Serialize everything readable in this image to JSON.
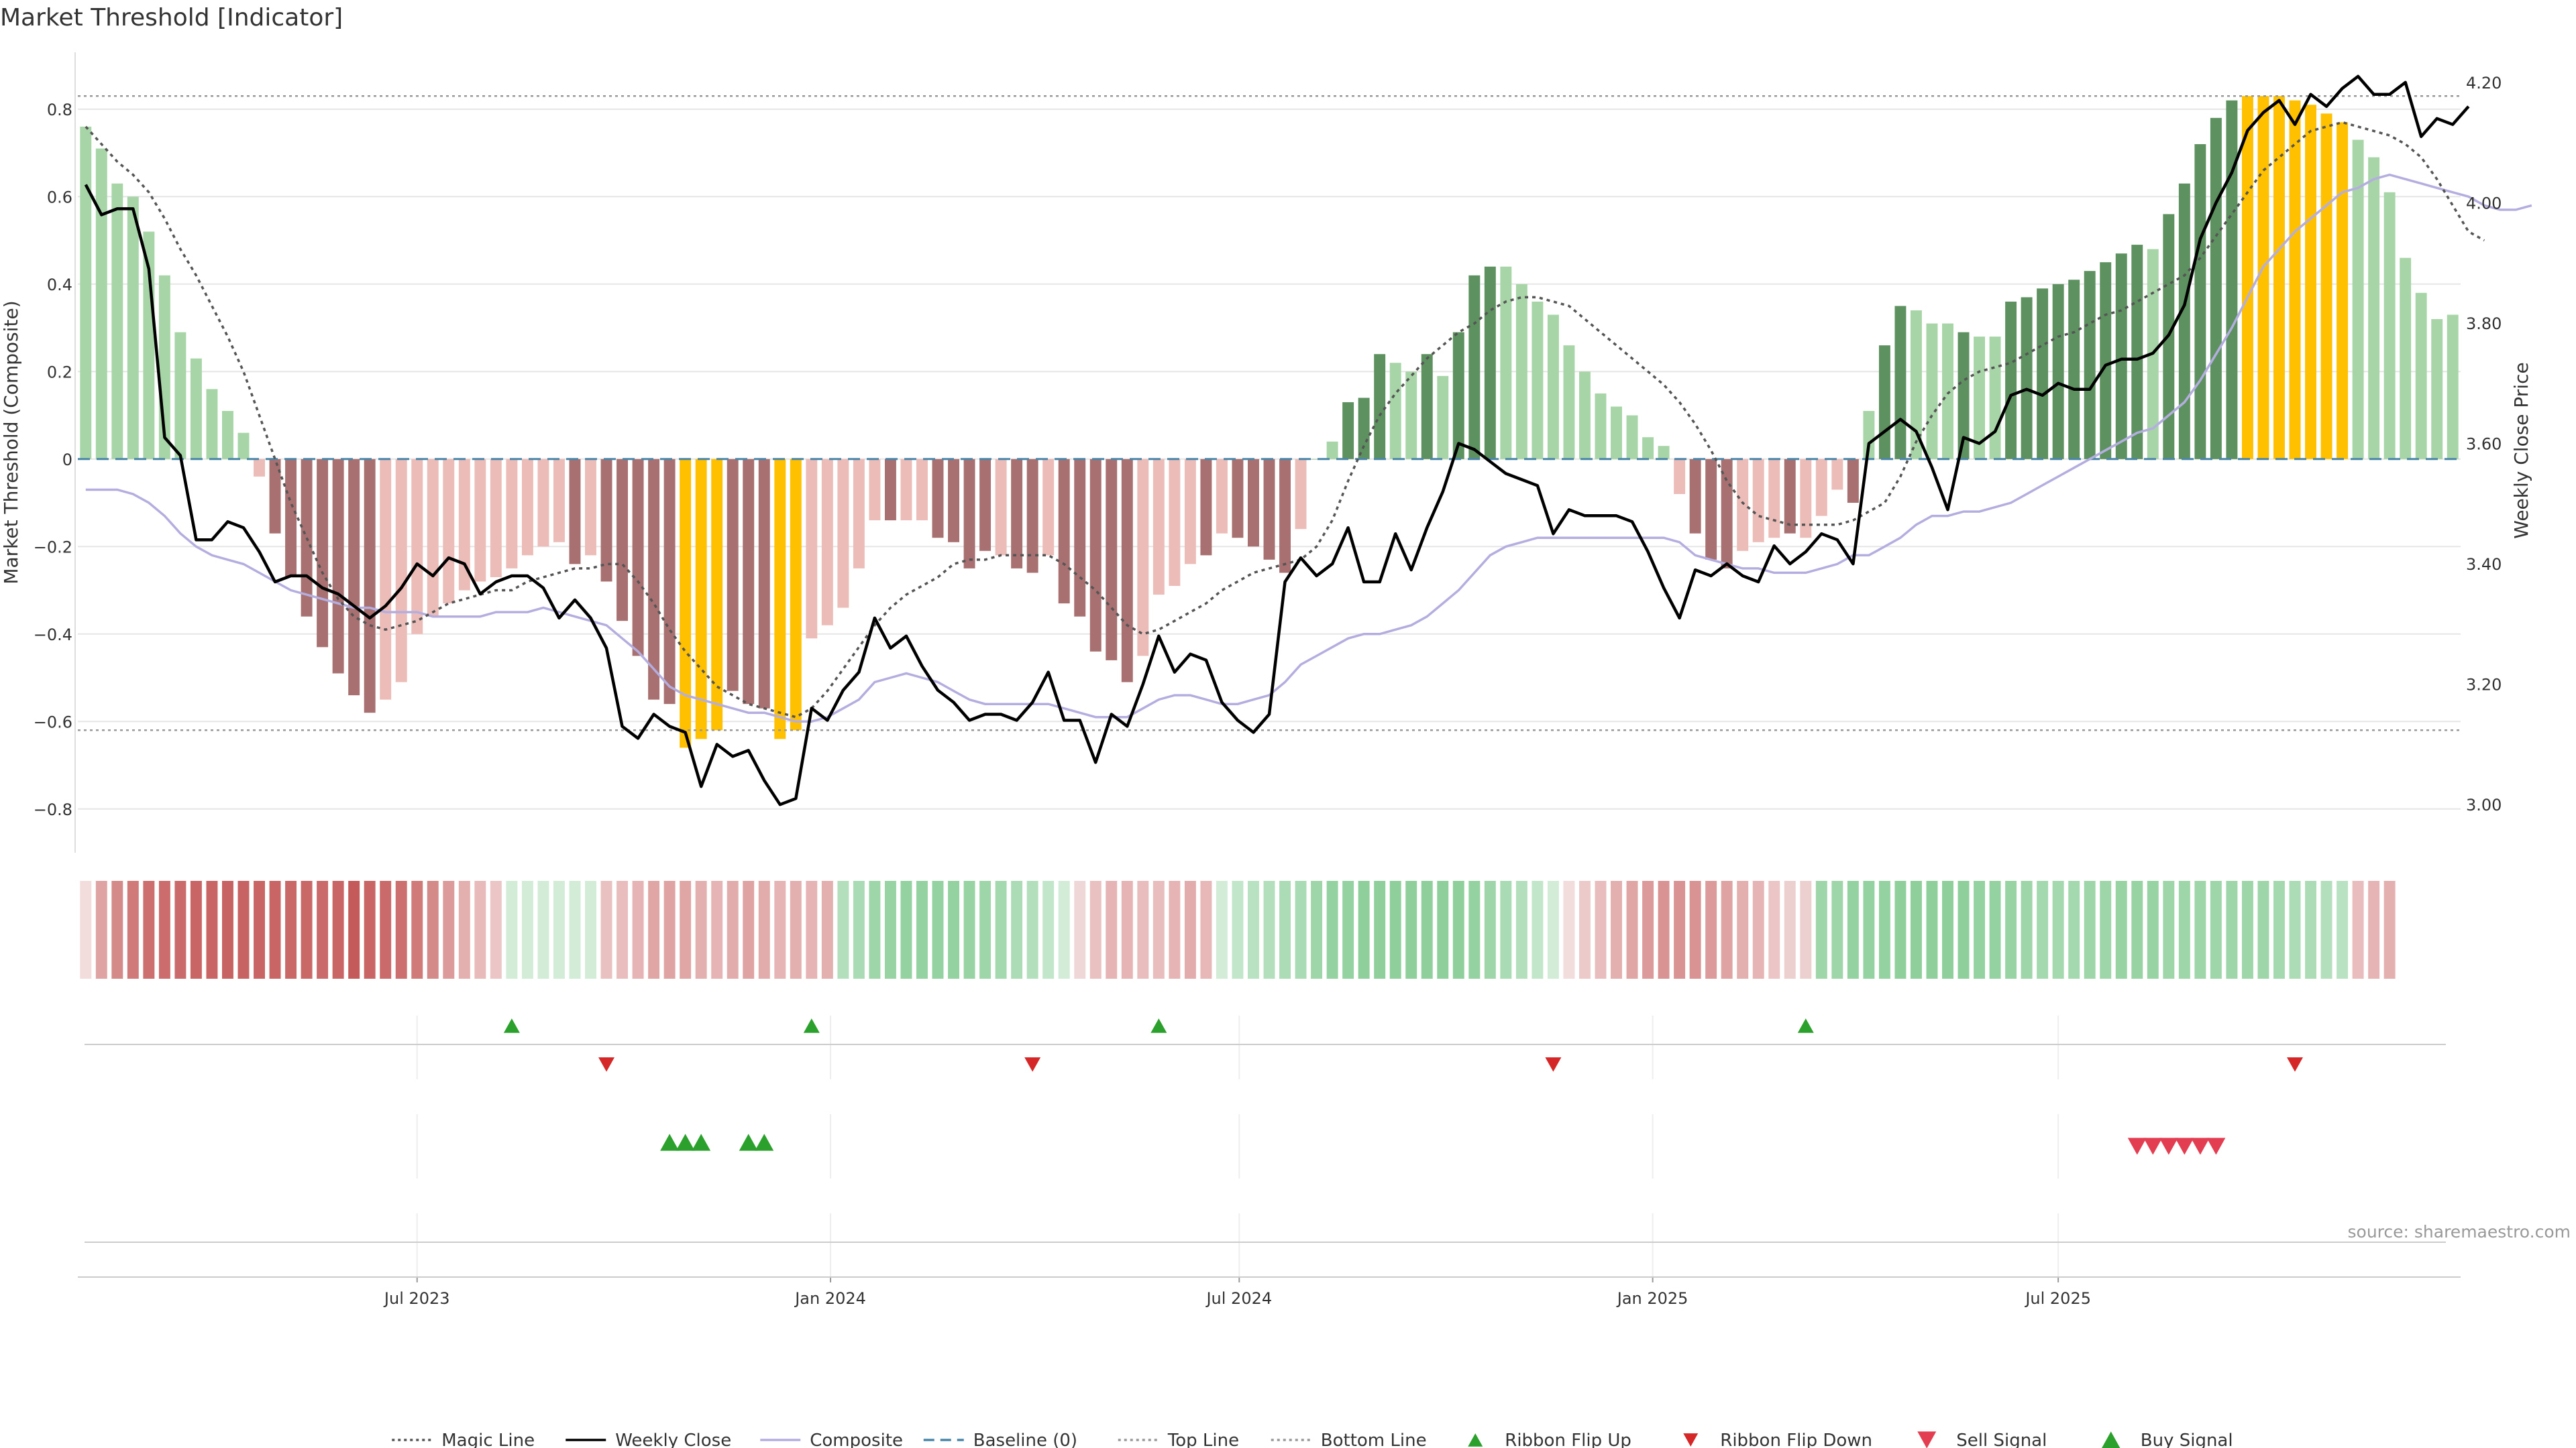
{
  "chart_data": {
    "type": "bar",
    "title": "Market Threshold [Indicator]",
    "ylabel_left": "Market Threshold (Composite)",
    "ylabel_right": "Weekly Close Price",
    "ylim_left": [
      -0.9,
      0.93
    ],
    "ylim_right": [
      2.92,
      4.25
    ],
    "yticks_left": [
      {
        "value": 0.8,
        "label": "0.8"
      },
      {
        "value": 0.6,
        "label": "0.6"
      },
      {
        "value": 0.4,
        "label": "0.4"
      },
      {
        "value": 0.2,
        "label": "0.2"
      },
      {
        "value": 0,
        "label": "0"
      },
      {
        "value": -0.2,
        "label": "−0.2"
      },
      {
        "value": -0.4,
        "label": "−0.4"
      },
      {
        "value": -0.6,
        "label": "−0.6"
      },
      {
        "value": -0.8,
        "label": "−0.8"
      }
    ],
    "yticks_right": [
      {
        "value": 4.2,
        "label": "4.20"
      },
      {
        "value": 4.0,
        "label": "4.00"
      },
      {
        "value": 3.8,
        "label": "3.80"
      },
      {
        "value": 3.6,
        "label": "3.60"
      },
      {
        "value": 3.4,
        "label": "3.40"
      },
      {
        "value": 3.2,
        "label": "3.20"
      },
      {
        "value": 3.0,
        "label": "3.00"
      }
    ],
    "x_ticks": [
      {
        "week": 21.5,
        "label": "Jul 2023"
      },
      {
        "week": 47.7,
        "label": "Jan 2024"
      },
      {
        "week": 73.6,
        "label": "Jul 2024"
      },
      {
        "week": 99.8,
        "label": "Jan 2025"
      },
      {
        "week": 125.5,
        "label": "Jul 2025"
      }
    ],
    "top_line": 0.83,
    "bottom_line": -0.62,
    "grid": true,
    "composite_bars": [
      0.76,
      0.71,
      0.63,
      0.6,
      0.52,
      0.42,
      0.29,
      0.23,
      0.16,
      0.11,
      0.06,
      -0.04,
      -0.17,
      -0.27,
      -0.36,
      -0.43,
      -0.49,
      -0.54,
      -0.58,
      -0.55,
      -0.51,
      -0.4,
      -0.36,
      -0.33,
      -0.3,
      -0.28,
      -0.27,
      -0.25,
      -0.22,
      -0.2,
      -0.19,
      -0.24,
      -0.22,
      -0.28,
      -0.37,
      -0.45,
      -0.55,
      -0.56,
      -0.66,
      -0.64,
      -0.62,
      -0.53,
      -0.56,
      -0.57,
      -0.64,
      -0.62,
      -0.41,
      -0.38,
      -0.34,
      -0.25,
      -0.14,
      -0.14,
      -0.14,
      -0.14,
      -0.18,
      -0.19,
      -0.25,
      -0.21,
      -0.22,
      -0.25,
      -0.26,
      -0.22,
      -0.33,
      -0.36,
      -0.44,
      -0.46,
      -0.51,
      -0.45,
      -0.31,
      -0.29,
      -0.24,
      -0.22,
      -0.17,
      -0.18,
      -0.2,
      -0.23,
      -0.26,
      -0.16,
      0,
      0.04,
      0.13,
      0.14,
      0.24,
      0.22,
      0.2,
      0.24,
      0.19,
      0.29,
      0.42,
      0.44,
      0.44,
      0.4,
      0.36,
      0.33,
      0.26,
      0.2,
      0.15,
      0.12,
      0.1,
      0.05,
      0.03,
      -0.08,
      -0.17,
      -0.23,
      -0.25,
      -0.21,
      -0.19,
      -0.18,
      -0.17,
      -0.18,
      -0.13,
      -0.07,
      -0.1,
      0.11,
      0.26,
      0.35,
      0.34,
      0.31,
      0.31,
      0.29,
      0.28,
      0.28,
      0.36,
      0.37,
      0.39,
      0.4,
      0.41,
      0.43,
      0.45,
      0.47,
      0.49,
      0.48,
      0.56,
      0.63,
      0.72,
      0.78,
      0.82,
      0.83,
      0.83,
      0.83,
      0.82,
      0.81,
      0.79,
      0.77,
      0.73,
      0.69,
      0.61,
      0.46,
      0.38,
      0.32,
      0.33
    ],
    "bar_categories": [
      "g",
      "g",
      "g",
      "g",
      "g",
      "g",
      "g",
      "g",
      "g",
      "g",
      "g",
      "r",
      "R",
      "R",
      "R",
      "R",
      "R",
      "R",
      "R",
      "r",
      "r",
      "r",
      "r",
      "r",
      "r",
      "r",
      "r",
      "r",
      "r",
      "r",
      "r",
      "R",
      "r",
      "R",
      "R",
      "R",
      "R",
      "R",
      "Y",
      "Y",
      "Y",
      "R",
      "R",
      "R",
      "Y",
      "Y",
      "r",
      "r",
      "r",
      "r",
      "r",
      "R",
      "r",
      "r",
      "R",
      "R",
      "R",
      "R",
      "r",
      "R",
      "R",
      "r",
      "R",
      "R",
      "R",
      "R",
      "R",
      "r",
      "r",
      "r",
      "r",
      "R",
      "r",
      "R",
      "R",
      "R",
      "R",
      "r",
      "g",
      "g",
      "G",
      "G",
      "G",
      "g",
      "g",
      "G",
      "g",
      "G",
      "G",
      "G",
      "g",
      "g",
      "g",
      "g",
      "g",
      "g",
      "g",
      "g",
      "g",
      "g",
      "g",
      "r",
      "R",
      "R",
      "R",
      "r",
      "r",
      "r",
      "R",
      "r",
      "r",
      "r",
      "R",
      "g",
      "G",
      "G",
      "g",
      "g",
      "g",
      "G",
      "g",
      "g",
      "G",
      "G",
      "G",
      "G",
      "G",
      "G",
      "G",
      "G",
      "G",
      "g",
      "G",
      "G",
      "G",
      "G",
      "G",
      "Y",
      "Y",
      "Y",
      "Y",
      "Y",
      "Y",
      "Y",
      "g",
      "g",
      "g",
      "g",
      "g",
      "g",
      "g",
      "g",
      "g",
      "g",
      "G"
    ],
    "weekly_close": [
      4.03,
      3.98,
      3.99,
      3.99,
      3.89,
      3.61,
      3.58,
      3.44,
      3.44,
      3.47,
      3.46,
      3.42,
      3.37,
      3.38,
      3.38,
      3.36,
      3.35,
      3.33,
      3.31,
      3.33,
      3.36,
      3.4,
      3.38,
      3.41,
      3.4,
      3.35,
      3.37,
      3.38,
      3.38,
      3.36,
      3.31,
      3.34,
      3.31,
      3.26,
      3.13,
      3.11,
      3.15,
      3.13,
      3.12,
      3.03,
      3.1,
      3.08,
      3.09,
      3.04,
      3.0,
      3.01,
      3.16,
      3.14,
      3.19,
      3.22,
      3.31,
      3.26,
      3.28,
      3.23,
      3.19,
      3.17,
      3.14,
      3.15,
      3.15,
      3.14,
      3.17,
      3.22,
      3.14,
      3.14,
      3.07,
      3.15,
      3.13,
      3.2,
      3.28,
      3.22,
      3.25,
      3.24,
      3.17,
      3.14,
      3.12,
      3.15,
      3.37,
      3.41,
      3.38,
      3.4,
      3.46,
      3.37,
      3.37,
      3.45,
      3.39,
      3.46,
      3.52,
      3.6,
      3.59,
      3.57,
      3.55,
      3.54,
      3.53,
      3.45,
      3.49,
      3.48,
      3.48,
      3.48,
      3.47,
      3.42,
      3.36,
      3.31,
      3.39,
      3.38,
      3.4,
      3.38,
      3.37,
      3.43,
      3.4,
      3.42,
      3.45,
      3.44,
      3.4,
      3.6,
      3.62,
      3.64,
      3.62,
      3.56,
      3.49,
      3.61,
      3.6,
      3.62,
      3.68,
      3.69,
      3.68,
      3.7,
      3.69,
      3.69,
      3.73,
      3.74,
      3.74,
      3.75,
      3.78,
      3.83,
      3.94,
      4.0,
      4.05,
      4.12,
      4.15,
      4.17,
      4.13,
      4.18,
      4.16,
      4.19,
      4.21,
      4.18,
      4.18,
      4.2,
      4.11,
      4.14,
      4.13,
      4.16
    ],
    "composite_line": [
      -0.07,
      -0.07,
      -0.07,
      -0.08,
      -0.1,
      -0.13,
      -0.17,
      -0.2,
      -0.22,
      -0.23,
      -0.24,
      -0.26,
      -0.28,
      -0.3,
      -0.31,
      -0.32,
      -0.33,
      -0.34,
      -0.34,
      -0.35,
      -0.35,
      -0.35,
      -0.36,
      -0.36,
      -0.36,
      -0.36,
      -0.35,
      -0.35,
      -0.35,
      -0.34,
      -0.35,
      -0.36,
      -0.37,
      -0.38,
      -0.41,
      -0.44,
      -0.48,
      -0.52,
      -0.54,
      -0.55,
      -0.56,
      -0.57,
      -0.58,
      -0.58,
      -0.59,
      -0.6,
      -0.6,
      -0.59,
      -0.57,
      -0.55,
      -0.51,
      -0.5,
      -0.49,
      -0.5,
      -0.51,
      -0.53,
      -0.55,
      -0.56,
      -0.56,
      -0.56,
      -0.56,
      -0.56,
      -0.57,
      -0.58,
      -0.59,
      -0.59,
      -0.59,
      -0.57,
      -0.55,
      -0.54,
      -0.54,
      -0.55,
      -0.56,
      -0.56,
      -0.55,
      -0.54,
      -0.51,
      -0.47,
      -0.45,
      -0.43,
      -0.41,
      -0.4,
      -0.4,
      -0.39,
      -0.38,
      -0.36,
      -0.33,
      -0.3,
      -0.26,
      -0.22,
      -0.2,
      -0.19,
      -0.18,
      -0.18,
      -0.18,
      -0.18,
      -0.18,
      -0.18,
      -0.18,
      -0.18,
      -0.18,
      -0.19,
      -0.22,
      -0.23,
      -0.24,
      -0.25,
      -0.25,
      -0.26,
      -0.26,
      -0.26,
      -0.25,
      -0.24,
      -0.22,
      -0.22,
      -0.2,
      -0.18,
      -0.15,
      -0.13,
      -0.13,
      -0.12,
      -0.12,
      -0.11,
      -0.1,
      -0.08,
      -0.06,
      -0.04,
      -0.02,
      0.0,
      0.02,
      0.04,
      0.06,
      0.07,
      0.1,
      0.13,
      0.18,
      0.24,
      0.3,
      0.37,
      0.44,
      0.48,
      0.52,
      0.55,
      0.58,
      0.61,
      0.62,
      0.64,
      0.65,
      0.64,
      0.63,
      0.62,
      0.61,
      0.6,
      0.58,
      0.57,
      0.57,
      0.58
    ],
    "magic_line": [
      0.76,
      0.72,
      0.68,
      0.65,
      0.61,
      0.55,
      0.48,
      0.42,
      0.35,
      0.28,
      0.2,
      0.1,
      0.0,
      -0.1,
      -0.18,
      -0.26,
      -0.32,
      -0.36,
      -0.38,
      -0.39,
      -0.38,
      -0.37,
      -0.35,
      -0.33,
      -0.32,
      -0.31,
      -0.3,
      -0.3,
      -0.28,
      -0.27,
      -0.26,
      -0.25,
      -0.25,
      -0.24,
      -0.24,
      -0.28,
      -0.33,
      -0.39,
      -0.44,
      -0.48,
      -0.52,
      -0.54,
      -0.56,
      -0.57,
      -0.58,
      -0.59,
      -0.57,
      -0.53,
      -0.48,
      -0.43,
      -0.38,
      -0.34,
      -0.31,
      -0.29,
      -0.27,
      -0.24,
      -0.23,
      -0.23,
      -0.22,
      -0.22,
      -0.22,
      -0.22,
      -0.24,
      -0.27,
      -0.3,
      -0.34,
      -0.38,
      -0.4,
      -0.39,
      -0.37,
      -0.35,
      -0.33,
      -0.3,
      -0.28,
      -0.26,
      -0.25,
      -0.24,
      -0.23,
      -0.2,
      -0.14,
      -0.05,
      0.03,
      0.1,
      0.15,
      0.19,
      0.23,
      0.26,
      0.29,
      0.31,
      0.34,
      0.36,
      0.37,
      0.37,
      0.36,
      0.35,
      0.32,
      0.29,
      0.26,
      0.23,
      0.2,
      0.17,
      0.13,
      0.08,
      0.02,
      -0.05,
      -0.1,
      -0.13,
      -0.14,
      -0.15,
      -0.15,
      -0.15,
      -0.15,
      -0.14,
      -0.12,
      -0.1,
      -0.04,
      0.04,
      0.1,
      0.15,
      0.18,
      0.2,
      0.21,
      0.22,
      0.24,
      0.26,
      0.28,
      0.29,
      0.31,
      0.33,
      0.34,
      0.36,
      0.38,
      0.4,
      0.42,
      0.46,
      0.51,
      0.56,
      0.61,
      0.66,
      0.69,
      0.72,
      0.75,
      0.76,
      0.77,
      0.76,
      0.75,
      0.74,
      0.72,
      0.69,
      0.64,
      0.58,
      0.52,
      0.5
    ],
    "ribbon_colors": [
      "#f2dcdc",
      "#e0a3a3",
      "#d58a8a",
      "#d07a7a",
      "#cd6f6f",
      "#cc6c6c",
      "#cb6a6a",
      "#c96565",
      "#c96565",
      "#c86363",
      "#c86363",
      "#c96565",
      "#c96565",
      "#ca6767",
      "#ca6767",
      "#cb6a6a",
      "#c96565",
      "#c45a5a",
      "#c96565",
      "#cb6a6a",
      "#cd6f6f",
      "#d07a7a",
      "#d58a8a",
      "#dc9a9a",
      "#e4afaf",
      "#e8baba",
      "#ecc6c6",
      "#d2ecd7",
      "#d2ecd7",
      "#d2ecd7",
      "#d2ecd7",
      "#d2ecd7",
      "#d2ecd7",
      "#eac1c1",
      "#e9bdbd",
      "#e6b4b4",
      "#e0a6a6",
      "#dfa3a3",
      "#e0a6a6",
      "#e4afaf",
      "#e6b4b4",
      "#e3acac",
      "#dfa3a3",
      "#e3acac",
      "#e6b4b4",
      "#e4afaf",
      "#e6b4b4",
      "#e4afaf",
      "#b3dfbd",
      "#a9dbb4",
      "#9ed6aa",
      "#98d3a4",
      "#95d2a2",
      "#95d2a2",
      "#95d2a2",
      "#95d2a2",
      "#98d3a4",
      "#9ed6aa",
      "#a4d9b0",
      "#abdcb6",
      "#b3dfbd",
      "#c2e6c9",
      "#d2ecd7",
      "#f0d7d7",
      "#eac1c1",
      "#e6b4b4",
      "#e6b4b4",
      "#e9bdbd",
      "#e9bdbd",
      "#e6b4b4",
      "#e3acac",
      "#e8b8b8",
      "#d2ecd7",
      "#c2e6c9",
      "#b9e2c2",
      "#b3dfbd",
      "#abdcb6",
      "#a9dbb4",
      "#9ed6aa",
      "#95d2a2",
      "#95d2a2",
      "#8fcf9c",
      "#8fcf9c",
      "#8fcf9c",
      "#8fcf9c",
      "#8fcf9c",
      "#8fcf9c",
      "#8fcf9c",
      "#95d2a2",
      "#9ed6aa",
      "#a9dbb4",
      "#b3dfbd",
      "#c2e6c9",
      "#d2ecd7",
      "#f2dcdc",
      "#edcaca",
      "#e9bdbd",
      "#e4afaf",
      "#e0a6a6",
      "#dc9a9a",
      "#d99393",
      "#d99393",
      "#d99393",
      "#dc9a9a",
      "#dfa3a3",
      "#e4afaf",
      "#e6b4b4",
      "#ecc6c6",
      "#eccfcf",
      "#eccfcf",
      "#9ed6aa",
      "#9ed6aa",
      "#95d2a2",
      "#95d2a2",
      "#95d2a2",
      "#8fcf9c",
      "#8fcf9c",
      "#8fcf9c",
      "#8fcf9c",
      "#8fcf9c",
      "#95d2a2",
      "#95d2a2",
      "#98d3a4",
      "#9ed6aa",
      "#a4d9b0",
      "#a4d9b0",
      "#a4d9b0",
      "#9ed6aa",
      "#9ed6aa",
      "#98d3a4",
      "#98d3a4",
      "#98d3a4",
      "#9ed6aa",
      "#9ed6aa",
      "#9ed6aa",
      "#9ed6aa",
      "#9ed6aa",
      "#9ed6aa",
      "#9ed6aa",
      "#a4d9b0",
      "#abdcb6",
      "#abdcb6",
      "#b3dfbd",
      "#b9e2c2",
      "#e9bdbd",
      "#e6b4b4",
      "#e4afaf"
    ],
    "ribbon_flip_up_weeks": [
      27.5,
      46.5,
      68.5,
      109.5
    ],
    "ribbon_flip_down_weeks": [
      33.5,
      60.5,
      93.5,
      140.5
    ],
    "buy_signal_weeks": [
      37.5,
      38.5,
      39.5,
      42.5,
      43.5
    ],
    "sell_signal_weeks": [
      130.5,
      131.5,
      132.5,
      133.5,
      134.5,
      135.5
    ],
    "source_note": "source: sharemaestro.com",
    "legend_position": "bottom",
    "legend": [
      {
        "label": "Magic Line",
        "kind": "line",
        "color": "#555555",
        "dash": "dotted"
      },
      {
        "label": "Weekly Close",
        "kind": "line",
        "color": "#000000",
        "dash": "solid"
      },
      {
        "label": "Composite",
        "kind": "line",
        "color": "#b4aee0",
        "dash": "solid"
      },
      {
        "label": "Baseline (0)",
        "kind": "line",
        "color": "#4a86a8",
        "dash": "dashed"
      },
      {
        "label": "Top Line",
        "kind": "line",
        "color": "#999999",
        "dash": "dotted"
      },
      {
        "label": "Bottom Line",
        "kind": "line",
        "color": "#999999",
        "dash": "dotted"
      },
      {
        "label": "Ribbon Flip Up",
        "kind": "up",
        "color": "#2ca02c"
      },
      {
        "label": "Ribbon Flip Down",
        "kind": "down",
        "color": "#d62728"
      },
      {
        "label": "Sell Signal",
        "kind": "down-big",
        "color": "#e23d50"
      },
      {
        "label": "Buy Signal",
        "kind": "up-big",
        "color": "#2ca02c"
      }
    ],
    "colors": {
      "light_green": "#a8d5a8",
      "dark_green": "#5e9160",
      "light_red": "#ecbcb8",
      "dark_red": "#a87070",
      "gold": "#ffc000",
      "magic_line": "#555555",
      "weekly_close": "#000000",
      "composite_line": "#b4aee0",
      "baseline": "#4a86a8",
      "flip_up": "#2ca02c",
      "flip_down": "#d62728",
      "sell": "#e23d50",
      "buy": "#2ca02c"
    }
  }
}
